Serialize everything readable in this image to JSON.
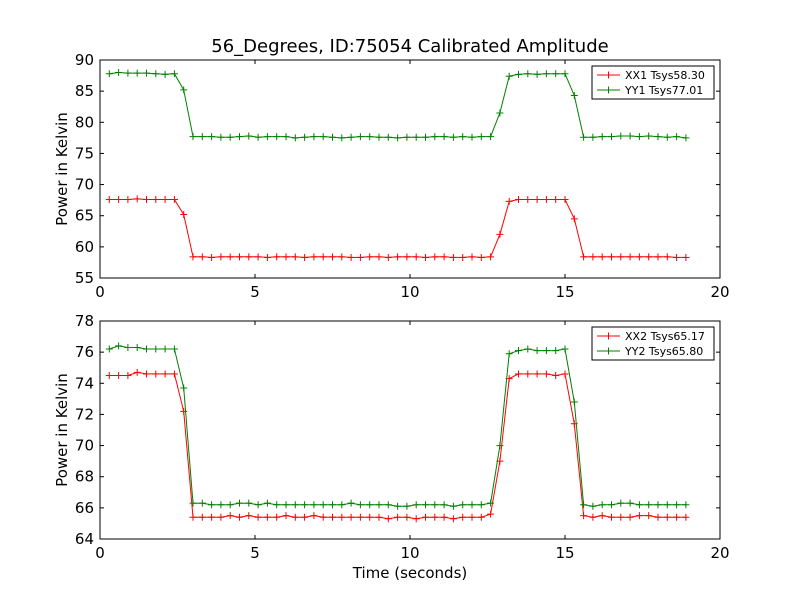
{
  "figure": {
    "title": "56_Degrees, ID:75054 Calibrated Amplitude",
    "xlabel": "Time (seconds)"
  },
  "chart_data": [
    {
      "type": "line",
      "ylabel": "Power in Kelvin",
      "xlim": [
        0,
        20
      ],
      "ylim": [
        55,
        90
      ],
      "xticks": [
        0,
        5,
        10,
        15,
        20
      ],
      "yticks": [
        55,
        60,
        65,
        70,
        75,
        80,
        85,
        90
      ],
      "grid": false,
      "legend": "top-right",
      "x": [
        0.3,
        0.6,
        0.9,
        1.2,
        1.5,
        1.8,
        2.1,
        2.4,
        2.7,
        3.0,
        3.3,
        3.6,
        3.9,
        4.2,
        4.5,
        4.8,
        5.1,
        5.4,
        5.7,
        6.0,
        6.3,
        6.6,
        6.9,
        7.2,
        7.5,
        7.8,
        8.1,
        8.4,
        8.7,
        9.0,
        9.3,
        9.6,
        9.9,
        10.2,
        10.5,
        10.8,
        11.1,
        11.4,
        11.7,
        12.0,
        12.3,
        12.6,
        12.9,
        13.2,
        13.5,
        13.8,
        14.1,
        14.4,
        14.7,
        15.0,
        15.3,
        15.6,
        15.9,
        16.2,
        16.5,
        16.8,
        17.1,
        17.4,
        17.7,
        18.0,
        18.3,
        18.6,
        18.9
      ],
      "series": [
        {
          "name": "XX1 Tsys58.30",
          "color": "#ff0000",
          "values": [
            67.6,
            67.6,
            67.6,
            67.7,
            67.6,
            67.6,
            67.6,
            67.6,
            65.2,
            58.4,
            58.4,
            58.3,
            58.4,
            58.4,
            58.4,
            58.4,
            58.4,
            58.3,
            58.4,
            58.4,
            58.4,
            58.3,
            58.4,
            58.4,
            58.4,
            58.4,
            58.3,
            58.3,
            58.4,
            58.4,
            58.3,
            58.4,
            58.4,
            58.4,
            58.3,
            58.4,
            58.4,
            58.3,
            58.3,
            58.4,
            58.3,
            58.4,
            62.0,
            67.3,
            67.6,
            67.6,
            67.6,
            67.6,
            67.6,
            67.6,
            64.5,
            58.4,
            58.4,
            58.4,
            58.4,
            58.4,
            58.4,
            58.4,
            58.4,
            58.4,
            58.4,
            58.3,
            58.3
          ]
        },
        {
          "name": "YY1 Tsys77.01",
          "color": "#008000",
          "values": [
            87.8,
            88.0,
            87.9,
            87.9,
            87.9,
            87.8,
            87.7,
            87.8,
            85.2,
            77.7,
            77.7,
            77.7,
            77.6,
            77.6,
            77.7,
            77.8,
            77.6,
            77.7,
            77.7,
            77.7,
            77.5,
            77.6,
            77.7,
            77.7,
            77.6,
            77.5,
            77.6,
            77.7,
            77.7,
            77.6,
            77.6,
            77.5,
            77.6,
            77.6,
            77.6,
            77.7,
            77.7,
            77.6,
            77.7,
            77.6,
            77.7,
            77.7,
            81.5,
            87.4,
            87.7,
            87.8,
            87.7,
            87.8,
            87.8,
            87.8,
            84.3,
            77.6,
            77.6,
            77.7,
            77.7,
            77.8,
            77.8,
            77.7,
            77.8,
            77.7,
            77.6,
            77.7,
            77.5
          ]
        }
      ]
    },
    {
      "type": "line",
      "ylabel": "Power in Kelvin",
      "xlabel": "Time (seconds)",
      "xlim": [
        0,
        20
      ],
      "ylim": [
        64,
        78
      ],
      "xticks": [
        0,
        5,
        10,
        15,
        20
      ],
      "yticks": [
        64,
        66,
        68,
        70,
        72,
        74,
        76,
        78
      ],
      "grid": false,
      "legend": "top-right",
      "x": [
        0.3,
        0.6,
        0.9,
        1.2,
        1.5,
        1.8,
        2.1,
        2.4,
        2.7,
        3.0,
        3.3,
        3.6,
        3.9,
        4.2,
        4.5,
        4.8,
        5.1,
        5.4,
        5.7,
        6.0,
        6.3,
        6.6,
        6.9,
        7.2,
        7.5,
        7.8,
        8.1,
        8.4,
        8.7,
        9.0,
        9.3,
        9.6,
        9.9,
        10.2,
        10.5,
        10.8,
        11.1,
        11.4,
        11.7,
        12.0,
        12.3,
        12.6,
        12.9,
        13.2,
        13.5,
        13.8,
        14.1,
        14.4,
        14.7,
        15.0,
        15.3,
        15.6,
        15.9,
        16.2,
        16.5,
        16.8,
        17.1,
        17.4,
        17.7,
        18.0,
        18.3,
        18.6,
        18.9
      ],
      "series": [
        {
          "name": "XX2 Tsys65.17",
          "color": "#ff0000",
          "values": [
            74.5,
            74.5,
            74.5,
            74.7,
            74.6,
            74.6,
            74.6,
            74.6,
            72.2,
            65.4,
            65.4,
            65.4,
            65.4,
            65.5,
            65.4,
            65.5,
            65.4,
            65.4,
            65.4,
            65.5,
            65.4,
            65.4,
            65.5,
            65.4,
            65.4,
            65.4,
            65.4,
            65.4,
            65.4,
            65.4,
            65.3,
            65.4,
            65.4,
            65.3,
            65.4,
            65.4,
            65.4,
            65.3,
            65.4,
            65.4,
            65.4,
            65.6,
            69.0,
            74.3,
            74.6,
            74.6,
            74.6,
            74.6,
            74.5,
            74.6,
            71.4,
            65.5,
            65.4,
            65.5,
            65.4,
            65.4,
            65.4,
            65.5,
            65.5,
            65.4,
            65.4,
            65.4,
            65.4
          ]
        },
        {
          "name": "YY2 Tsys65.80",
          "color": "#008000",
          "values": [
            76.2,
            76.4,
            76.3,
            76.3,
            76.2,
            76.2,
            76.2,
            76.2,
            73.7,
            66.3,
            66.3,
            66.2,
            66.2,
            66.2,
            66.3,
            66.3,
            66.2,
            66.3,
            66.2,
            66.2,
            66.2,
            66.2,
            66.2,
            66.2,
            66.2,
            66.2,
            66.3,
            66.2,
            66.2,
            66.2,
            66.2,
            66.1,
            66.1,
            66.2,
            66.2,
            66.2,
            66.2,
            66.1,
            66.2,
            66.2,
            66.2,
            66.3,
            70.0,
            75.9,
            76.1,
            76.2,
            76.1,
            76.1,
            76.1,
            76.2,
            72.8,
            66.2,
            66.1,
            66.2,
            66.2,
            66.3,
            66.3,
            66.2,
            66.2,
            66.2,
            66.2,
            66.2,
            66.2
          ]
        }
      ]
    }
  ]
}
